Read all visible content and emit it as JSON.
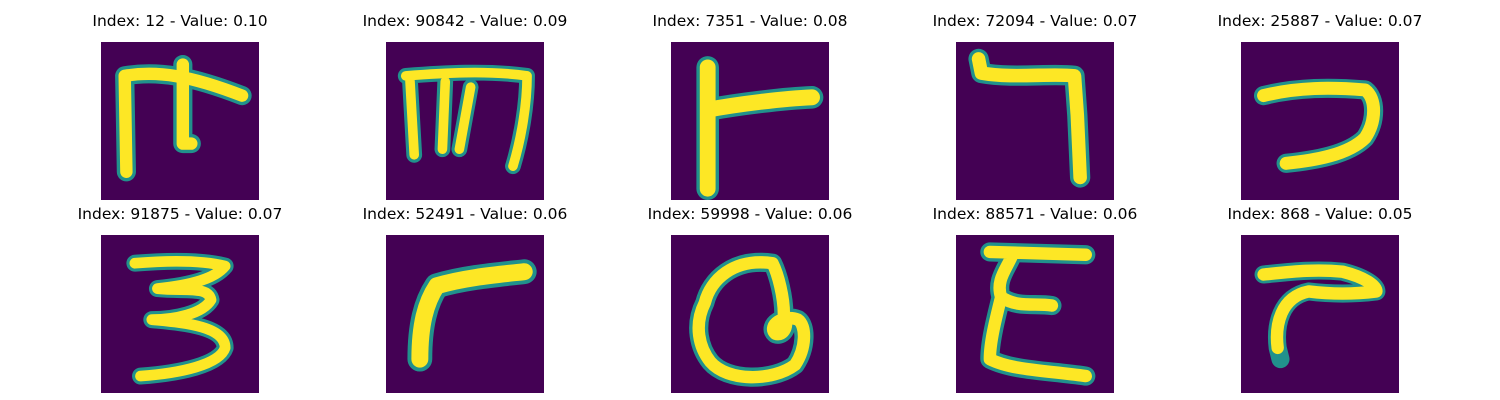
{
  "colors": {
    "background": "#440154",
    "mid_dark": "#2a788e",
    "mid": "#22a884",
    "mid_light": "#7ad151",
    "foreground": "#fde725"
  },
  "grid": [
    {
      "title": "Index: 12 - Value: 0.10",
      "glyph": "m-like-with-tick"
    },
    {
      "title": "Index: 90842 - Value: 0.09",
      "glyph": "m-like"
    },
    {
      "title": "Index: 7351 - Value: 0.08",
      "glyph": "t-bar"
    },
    {
      "title": "Index: 72094 - Value: 0.07",
      "glyph": "hook-right"
    },
    {
      "title": "Index: 25887 - Value: 0.07",
      "glyph": "hook-seven"
    },
    {
      "title": "Index: 91875 - Value: 0.07",
      "glyph": "three"
    },
    {
      "title": "Index: 52491 - Value: 0.06",
      "glyph": "r-curve"
    },
    {
      "title": "Index: 59998 - Value: 0.06",
      "glyph": "loop-a"
    },
    {
      "title": "Index: 88571 - Value: 0.06",
      "glyph": "epsilon"
    },
    {
      "title": "Index: 868 - Value: 0.05",
      "glyph": "r-small"
    }
  ]
}
